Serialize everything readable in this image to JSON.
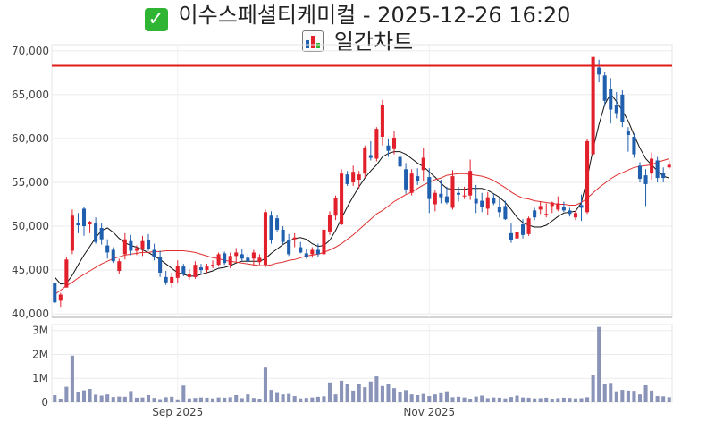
{
  "header": {
    "title": "이수스페셜티케미컬 - 2025-12-26 16:20",
    "subtitle": "일간차트"
  },
  "icons": {
    "title_icon": "check-mark-icon",
    "subtitle_icon": "bar-chart-icon"
  },
  "colors": {
    "up": "#e2202c",
    "down": "#1f5fae",
    "ma_short": "#111111",
    "ma_long": "#e03030",
    "ref_line": "#e11a1a",
    "volume": "#8a93b8"
  },
  "chart_data": [
    {
      "type": "candlestick",
      "y_ticks": [
        40000,
        45000,
        50000,
        55000,
        60000,
        65000,
        70000
      ],
      "y_tick_labels": [
        "40,000",
        "45,000",
        "50,000",
        "55,000",
        "60,000",
        "65,000",
        "70,000"
      ],
      "ylim": [
        39600,
        70700
      ],
      "x_tick_labels": [
        {
          "index": 21,
          "label": "Sep 2025"
        },
        {
          "index": 64,
          "label": "Nov 2025"
        }
      ],
      "reference_line": 68300,
      "candles": [
        [
          43500,
          43500,
          41200,
          41300
        ],
        [
          41500,
          42400,
          40800,
          42200
        ],
        [
          43000,
          46500,
          43000,
          46200
        ],
        [
          47200,
          51900,
          46800,
          51200
        ],
        [
          50400,
          51500,
          49200,
          50100
        ],
        [
          52000,
          52200,
          48900,
          50000
        ],
        [
          50200,
          50600,
          49200,
          50500
        ],
        [
          50300,
          51000,
          48000,
          48200
        ],
        [
          49800,
          50300,
          47900,
          48500
        ],
        [
          47800,
          48500,
          46300,
          47000
        ],
        [
          47300,
          47600,
          45800,
          46000
        ],
        [
          44900,
          46300,
          44600,
          46000
        ],
        [
          46800,
          49200,
          46200,
          48500
        ],
        [
          48300,
          49000,
          46700,
          47200
        ],
        [
          47200,
          47800,
          46700,
          47500
        ],
        [
          47400,
          48900,
          46600,
          48300
        ],
        [
          48400,
          49100,
          47200,
          47400
        ],
        [
          47300,
          48000,
          46100,
          46500
        ],
        [
          46500,
          47200,
          44200,
          44700
        ],
        [
          44200,
          44900,
          43300,
          43600
        ],
        [
          43500,
          44700,
          43000,
          44200
        ],
        [
          44100,
          46100,
          43500,
          45500
        ],
        [
          45400,
          45700,
          44300,
          44500
        ],
        [
          44200,
          45100,
          43900,
          44500
        ],
        [
          44200,
          46000,
          44000,
          45600
        ],
        [
          45300,
          45700,
          44600,
          45000
        ],
        [
          45000,
          45700,
          44700,
          45400
        ],
        [
          45500,
          46100,
          45200,
          45600
        ],
        [
          45600,
          47000,
          45400,
          46800
        ],
        [
          46900,
          47100,
          45600,
          45800
        ],
        [
          45600,
          47000,
          45200,
          46600
        ],
        [
          46600,
          47500,
          45900,
          47000
        ],
        [
          46800,
          47400,
          46000,
          46300
        ],
        [
          46400,
          46800,
          45800,
          46000
        ],
        [
          46300,
          47300,
          45500,
          47000
        ],
        [
          45900,
          46800,
          45600,
          46400
        ],
        [
          45600,
          51900,
          45300,
          51600
        ],
        [
          51200,
          51700,
          48000,
          48400
        ],
        [
          50900,
          51300,
          49400,
          49600
        ],
        [
          49600,
          50000,
          47900,
          48200
        ],
        [
          48400,
          49100,
          46600,
          46800
        ],
        [
          48500,
          49200,
          47600,
          48700
        ],
        [
          47600,
          48200,
          46900,
          47000
        ],
        [
          46900,
          47400,
          46300,
          46500
        ],
        [
          46800,
          47600,
          46400,
          47300
        ],
        [
          47300,
          48000,
          46500,
          46800
        ],
        [
          46800,
          49900,
          46600,
          49600
        ],
        [
          49400,
          51700,
          49000,
          51300
        ],
        [
          51200,
          53500,
          50700,
          53200
        ],
        [
          50200,
          56500,
          50100,
          56000
        ],
        [
          55900,
          56300,
          54600,
          54800
        ],
        [
          55000,
          56900,
          54600,
          56200
        ],
        [
          55300,
          56300,
          54300,
          55900
        ],
        [
          56000,
          59200,
          55500,
          58900
        ],
        [
          58100,
          59700,
          57500,
          57800
        ],
        [
          57700,
          61300,
          57400,
          61100
        ],
        [
          60200,
          64400,
          59200,
          63800
        ],
        [
          59200,
          60000,
          57900,
          58600
        ],
        [
          58800,
          60900,
          58200,
          60100
        ],
        [
          57900,
          58600,
          56400,
          56800
        ],
        [
          56500,
          57200,
          53700,
          54200
        ],
        [
          53800,
          56500,
          53500,
          56000
        ],
        [
          55700,
          56600,
          54700,
          55100
        ],
        [
          56400,
          58900,
          55200,
          57800
        ],
        [
          55600,
          56600,
          51500,
          53100
        ],
        [
          52500,
          54100,
          51700,
          53800
        ],
        [
          53700,
          55300,
          52600,
          53300
        ],
        [
          53400,
          54500,
          52500,
          52700
        ],
        [
          52100,
          56400,
          51900,
          55700
        ],
        [
          53800,
          54500,
          52800,
          53600
        ],
        [
          53500,
          54500,
          53100,
          53500
        ],
        [
          53500,
          57600,
          53000,
          56300
        ],
        [
          53100,
          54700,
          51500,
          52600
        ],
        [
          52900,
          53800,
          51600,
          52200
        ],
        [
          52000,
          53900,
          51300,
          53300
        ],
        [
          53200,
          53700,
          52400,
          52600
        ],
        [
          52200,
          53300,
          51000,
          51600
        ],
        [
          52300,
          52900,
          50700,
          50800
        ],
        [
          49200,
          50300,
          48100,
          48400
        ],
        [
          48600,
          49500,
          48400,
          49300
        ],
        [
          50200,
          50800,
          48600,
          49000
        ],
        [
          49100,
          51100,
          48900,
          50900
        ],
        [
          51800,
          52100,
          50700,
          51000
        ],
        [
          51900,
          52800,
          51400,
          52300
        ],
        [
          51400,
          52600,
          51000,
          51400
        ],
        [
          52300,
          52800,
          51500,
          52700
        ],
        [
          51900,
          53400,
          51700,
          52600
        ],
        [
          52200,
          52800,
          51600,
          51800
        ],
        [
          51800,
          52100,
          51100,
          51400
        ],
        [
          51000,
          51800,
          50700,
          51500
        ],
        [
          52400,
          53600,
          50600,
          52100
        ],
        [
          51600,
          60000,
          51400,
          59700
        ],
        [
          58200,
          69400,
          57700,
          69300
        ],
        [
          68100,
          69000,
          66400,
          67300
        ],
        [
          67200,
          67600,
          63700,
          64300
        ],
        [
          65700,
          66900,
          61700,
          63300
        ],
        [
          63800,
          65300,
          62300,
          62900
        ],
        [
          65000,
          65500,
          61300,
          61900
        ],
        [
          60900,
          61300,
          58500,
          60400
        ],
        [
          60200,
          60600,
          57800,
          58200
        ],
        [
          56900,
          57300,
          55000,
          55400
        ],
        [
          55800,
          56500,
          52300,
          54800
        ],
        [
          56000,
          58400,
          55300,
          57700
        ],
        [
          57500,
          57900,
          55000,
          55500
        ],
        [
          56100,
          56700,
          55000,
          55500
        ],
        [
          56700,
          57500,
          56500,
          57000
        ]
      ],
      "series": [
        {
          "values": [
            44200,
            43400,
            43500,
            44400,
            45600,
            46700,
            47700,
            48700,
            49500,
            49800,
            49300,
            48600,
            48100,
            47800,
            47600,
            47300,
            47000,
            46600,
            46200,
            45700,
            45200,
            44700,
            44500,
            44300,
            44300,
            44500,
            44700,
            44900,
            45200,
            45300,
            45500,
            45800,
            46000,
            46000,
            46000,
            46000,
            46300,
            46900,
            47400,
            47900,
            48300,
            48600,
            48700,
            48500,
            48000,
            47700,
            47800,
            48400,
            49500,
            50900,
            52200,
            53400,
            54500,
            55500,
            56300,
            57000,
            57900,
            58300,
            58500,
            58500,
            58200,
            57700,
            57200,
            56800,
            56200,
            55600,
            54900,
            54300,
            54200,
            54200,
            54200,
            54300,
            54300,
            54300,
            54100,
            53700,
            53300,
            52700,
            51900,
            51000,
            50400,
            50100,
            49900,
            49900,
            50100,
            50600,
            51100,
            51500,
            51600,
            51700,
            52700,
            55500,
            58800,
            61600,
            63900,
            65100,
            64200,
            63200,
            62000,
            60400,
            58900,
            57700,
            57000,
            56300,
            55700,
            55500
          ]
        },
        {
          "values": [
            42200,
            42700,
            43200,
            43600,
            44100,
            44500,
            44900,
            45300,
            45700,
            46000,
            46300,
            46500,
            46700,
            46800,
            46900,
            47000,
            47000,
            47100,
            47100,
            47200,
            47200,
            47200,
            47200,
            47100,
            47000,
            46800,
            46600,
            46400,
            46300,
            46100,
            46000,
            45900,
            45800,
            45700,
            45600,
            45500,
            45500,
            45600,
            45800,
            45900,
            46100,
            46200,
            46400,
            46600,
            46700,
            46800,
            47000,
            47300,
            47600,
            48000,
            48500,
            49000,
            49600,
            50200,
            50800,
            51400,
            51800,
            52300,
            52800,
            53200,
            53600,
            53900,
            54300,
            54700,
            55000,
            55300,
            55500,
            55800,
            55900,
            56000,
            56000,
            55900,
            55800,
            55700,
            55500,
            55200,
            54800,
            54400,
            53900,
            53500,
            53200,
            53100,
            52900,
            52800,
            52700,
            52600,
            52500,
            52500,
            52400,
            52400,
            52700,
            53200,
            53800,
            54400,
            54900,
            55400,
            55800,
            56100,
            56400,
            56700,
            56800,
            56900,
            57000,
            57300,
            57500,
            57700
          ]
        }
      ]
    },
    {
      "type": "bar",
      "y_ticks": [
        0,
        1000000,
        2000000,
        3000000
      ],
      "y_tick_labels": [
        "0",
        "1M",
        "2M",
        "3M"
      ],
      "ylim": [
        0,
        3250000
      ],
      "values": [
        300000,
        150000,
        650000,
        1950000,
        430000,
        500000,
        560000,
        320000,
        280000,
        330000,
        220000,
        240000,
        230000,
        470000,
        190000,
        200000,
        300000,
        180000,
        130000,
        210000,
        230000,
        120000,
        700000,
        160000,
        180000,
        200000,
        190000,
        160000,
        200000,
        190000,
        210000,
        300000,
        170000,
        330000,
        180000,
        150000,
        1450000,
        520000,
        390000,
        330000,
        350000,
        260000,
        160000,
        180000,
        200000,
        230000,
        250000,
        830000,
        330000,
        900000,
        760000,
        490000,
        780000,
        630000,
        870000,
        1080000,
        680000,
        770000,
        590000,
        410000,
        510000,
        330000,
        300000,
        350000,
        260000,
        330000,
        380000,
        460000,
        210000,
        230000,
        200000,
        150000,
        240000,
        280000,
        170000,
        200000,
        190000,
        160000,
        220000,
        280000,
        200000,
        190000,
        160000,
        170000,
        190000,
        150000,
        170000,
        190000,
        180000,
        160000,
        170000,
        210000,
        1130000,
        3150000,
        770000,
        810000,
        460000,
        520000,
        490000,
        480000,
        330000,
        710000,
        490000,
        260000,
        250000,
        210000
      ]
    }
  ]
}
